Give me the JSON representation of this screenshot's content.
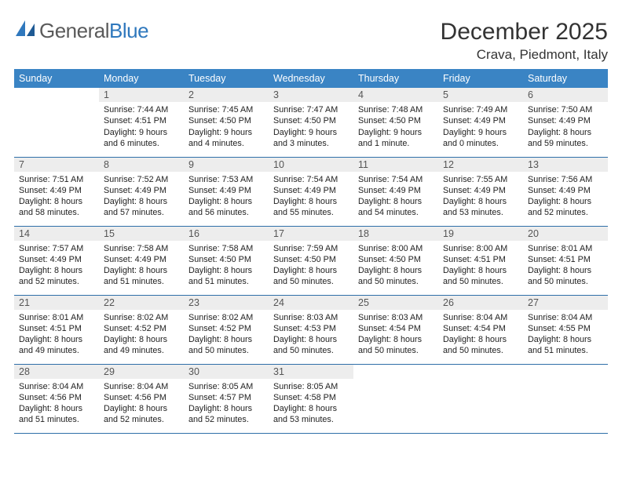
{
  "logo": {
    "text1": "General",
    "text2": "Blue"
  },
  "header": {
    "title": "December 2025",
    "location": "Crava, Piedmont, Italy"
  },
  "colors": {
    "header_bg": "#3a84c4",
    "header_fg": "#ffffff",
    "daynum_bg": "#ededed",
    "row_border": "#2f6fa8",
    "logo_gray": "#5a5a5a",
    "logo_blue": "#2f78bd"
  },
  "days_of_week": [
    "Sunday",
    "Monday",
    "Tuesday",
    "Wednesday",
    "Thursday",
    "Friday",
    "Saturday"
  ],
  "weeks": [
    [
      {
        "n": "",
        "sr": "",
        "ss": "",
        "dl": ""
      },
      {
        "n": "1",
        "sr": "Sunrise: 7:44 AM",
        "ss": "Sunset: 4:51 PM",
        "dl": "Daylight: 9 hours and 6 minutes."
      },
      {
        "n": "2",
        "sr": "Sunrise: 7:45 AM",
        "ss": "Sunset: 4:50 PM",
        "dl": "Daylight: 9 hours and 4 minutes."
      },
      {
        "n": "3",
        "sr": "Sunrise: 7:47 AM",
        "ss": "Sunset: 4:50 PM",
        "dl": "Daylight: 9 hours and 3 minutes."
      },
      {
        "n": "4",
        "sr": "Sunrise: 7:48 AM",
        "ss": "Sunset: 4:50 PM",
        "dl": "Daylight: 9 hours and 1 minute."
      },
      {
        "n": "5",
        "sr": "Sunrise: 7:49 AM",
        "ss": "Sunset: 4:49 PM",
        "dl": "Daylight: 9 hours and 0 minutes."
      },
      {
        "n": "6",
        "sr": "Sunrise: 7:50 AM",
        "ss": "Sunset: 4:49 PM",
        "dl": "Daylight: 8 hours and 59 minutes."
      }
    ],
    [
      {
        "n": "7",
        "sr": "Sunrise: 7:51 AM",
        "ss": "Sunset: 4:49 PM",
        "dl": "Daylight: 8 hours and 58 minutes."
      },
      {
        "n": "8",
        "sr": "Sunrise: 7:52 AM",
        "ss": "Sunset: 4:49 PM",
        "dl": "Daylight: 8 hours and 57 minutes."
      },
      {
        "n": "9",
        "sr": "Sunrise: 7:53 AM",
        "ss": "Sunset: 4:49 PM",
        "dl": "Daylight: 8 hours and 56 minutes."
      },
      {
        "n": "10",
        "sr": "Sunrise: 7:54 AM",
        "ss": "Sunset: 4:49 PM",
        "dl": "Daylight: 8 hours and 55 minutes."
      },
      {
        "n": "11",
        "sr": "Sunrise: 7:54 AM",
        "ss": "Sunset: 4:49 PM",
        "dl": "Daylight: 8 hours and 54 minutes."
      },
      {
        "n": "12",
        "sr": "Sunrise: 7:55 AM",
        "ss": "Sunset: 4:49 PM",
        "dl": "Daylight: 8 hours and 53 minutes."
      },
      {
        "n": "13",
        "sr": "Sunrise: 7:56 AM",
        "ss": "Sunset: 4:49 PM",
        "dl": "Daylight: 8 hours and 52 minutes."
      }
    ],
    [
      {
        "n": "14",
        "sr": "Sunrise: 7:57 AM",
        "ss": "Sunset: 4:49 PM",
        "dl": "Daylight: 8 hours and 52 minutes."
      },
      {
        "n": "15",
        "sr": "Sunrise: 7:58 AM",
        "ss": "Sunset: 4:49 PM",
        "dl": "Daylight: 8 hours and 51 minutes."
      },
      {
        "n": "16",
        "sr": "Sunrise: 7:58 AM",
        "ss": "Sunset: 4:50 PM",
        "dl": "Daylight: 8 hours and 51 minutes."
      },
      {
        "n": "17",
        "sr": "Sunrise: 7:59 AM",
        "ss": "Sunset: 4:50 PM",
        "dl": "Daylight: 8 hours and 50 minutes."
      },
      {
        "n": "18",
        "sr": "Sunrise: 8:00 AM",
        "ss": "Sunset: 4:50 PM",
        "dl": "Daylight: 8 hours and 50 minutes."
      },
      {
        "n": "19",
        "sr": "Sunrise: 8:00 AM",
        "ss": "Sunset: 4:51 PM",
        "dl": "Daylight: 8 hours and 50 minutes."
      },
      {
        "n": "20",
        "sr": "Sunrise: 8:01 AM",
        "ss": "Sunset: 4:51 PM",
        "dl": "Daylight: 8 hours and 50 minutes."
      }
    ],
    [
      {
        "n": "21",
        "sr": "Sunrise: 8:01 AM",
        "ss": "Sunset: 4:51 PM",
        "dl": "Daylight: 8 hours and 49 minutes."
      },
      {
        "n": "22",
        "sr": "Sunrise: 8:02 AM",
        "ss": "Sunset: 4:52 PM",
        "dl": "Daylight: 8 hours and 49 minutes."
      },
      {
        "n": "23",
        "sr": "Sunrise: 8:02 AM",
        "ss": "Sunset: 4:52 PM",
        "dl": "Daylight: 8 hours and 50 minutes."
      },
      {
        "n": "24",
        "sr": "Sunrise: 8:03 AM",
        "ss": "Sunset: 4:53 PM",
        "dl": "Daylight: 8 hours and 50 minutes."
      },
      {
        "n": "25",
        "sr": "Sunrise: 8:03 AM",
        "ss": "Sunset: 4:54 PM",
        "dl": "Daylight: 8 hours and 50 minutes."
      },
      {
        "n": "26",
        "sr": "Sunrise: 8:04 AM",
        "ss": "Sunset: 4:54 PM",
        "dl": "Daylight: 8 hours and 50 minutes."
      },
      {
        "n": "27",
        "sr": "Sunrise: 8:04 AM",
        "ss": "Sunset: 4:55 PM",
        "dl": "Daylight: 8 hours and 51 minutes."
      }
    ],
    [
      {
        "n": "28",
        "sr": "Sunrise: 8:04 AM",
        "ss": "Sunset: 4:56 PM",
        "dl": "Daylight: 8 hours and 51 minutes."
      },
      {
        "n": "29",
        "sr": "Sunrise: 8:04 AM",
        "ss": "Sunset: 4:56 PM",
        "dl": "Daylight: 8 hours and 52 minutes."
      },
      {
        "n": "30",
        "sr": "Sunrise: 8:05 AM",
        "ss": "Sunset: 4:57 PM",
        "dl": "Daylight: 8 hours and 52 minutes."
      },
      {
        "n": "31",
        "sr": "Sunrise: 8:05 AM",
        "ss": "Sunset: 4:58 PM",
        "dl": "Daylight: 8 hours and 53 minutes."
      },
      {
        "n": "",
        "sr": "",
        "ss": "",
        "dl": ""
      },
      {
        "n": "",
        "sr": "",
        "ss": "",
        "dl": ""
      },
      {
        "n": "",
        "sr": "",
        "ss": "",
        "dl": ""
      }
    ]
  ]
}
